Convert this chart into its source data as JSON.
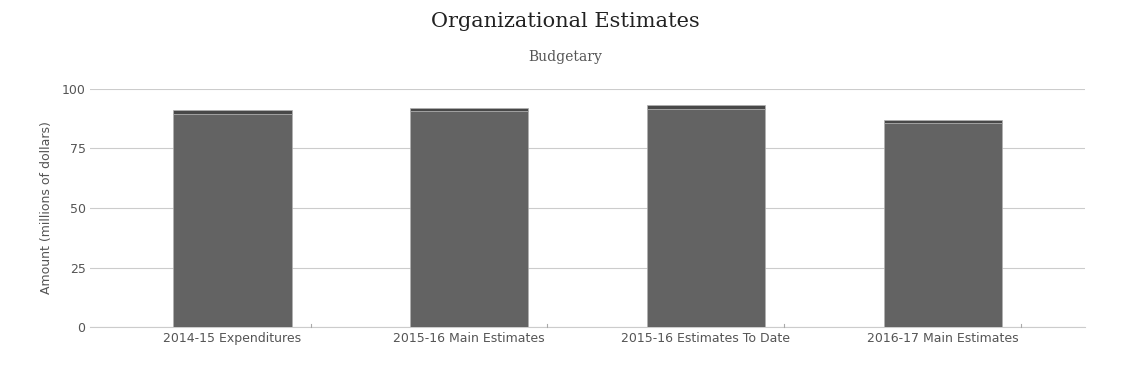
{
  "title": "Organizational Estimates",
  "subtitle": "Budgetary",
  "categories": [
    "2014-15 Expenditures",
    "2015-16 Main Estimates",
    "2015-16 Estimates To Date",
    "2016-17 Main Estimates"
  ],
  "statutory_values": [
    1.5,
    1.5,
    1.5,
    1.5
  ],
  "voted_values": [
    89.5,
    90.5,
    91.5,
    85.5
  ],
  "statutory_color": "#484848",
  "voted_color": "#636363",
  "bar_edge_color": "#b0b0b0",
  "ylabel": "Amount (millions of dollars)",
  "ylim": [
    0,
    100
  ],
  "yticks": [
    0,
    25,
    50,
    75,
    100
  ],
  "background_color": "#ffffff",
  "grid_color": "#cccccc",
  "title_fontsize": 15,
  "subtitle_fontsize": 10,
  "tick_fontsize": 9,
  "legend_fontsize": 10,
  "bar_width": 0.5
}
